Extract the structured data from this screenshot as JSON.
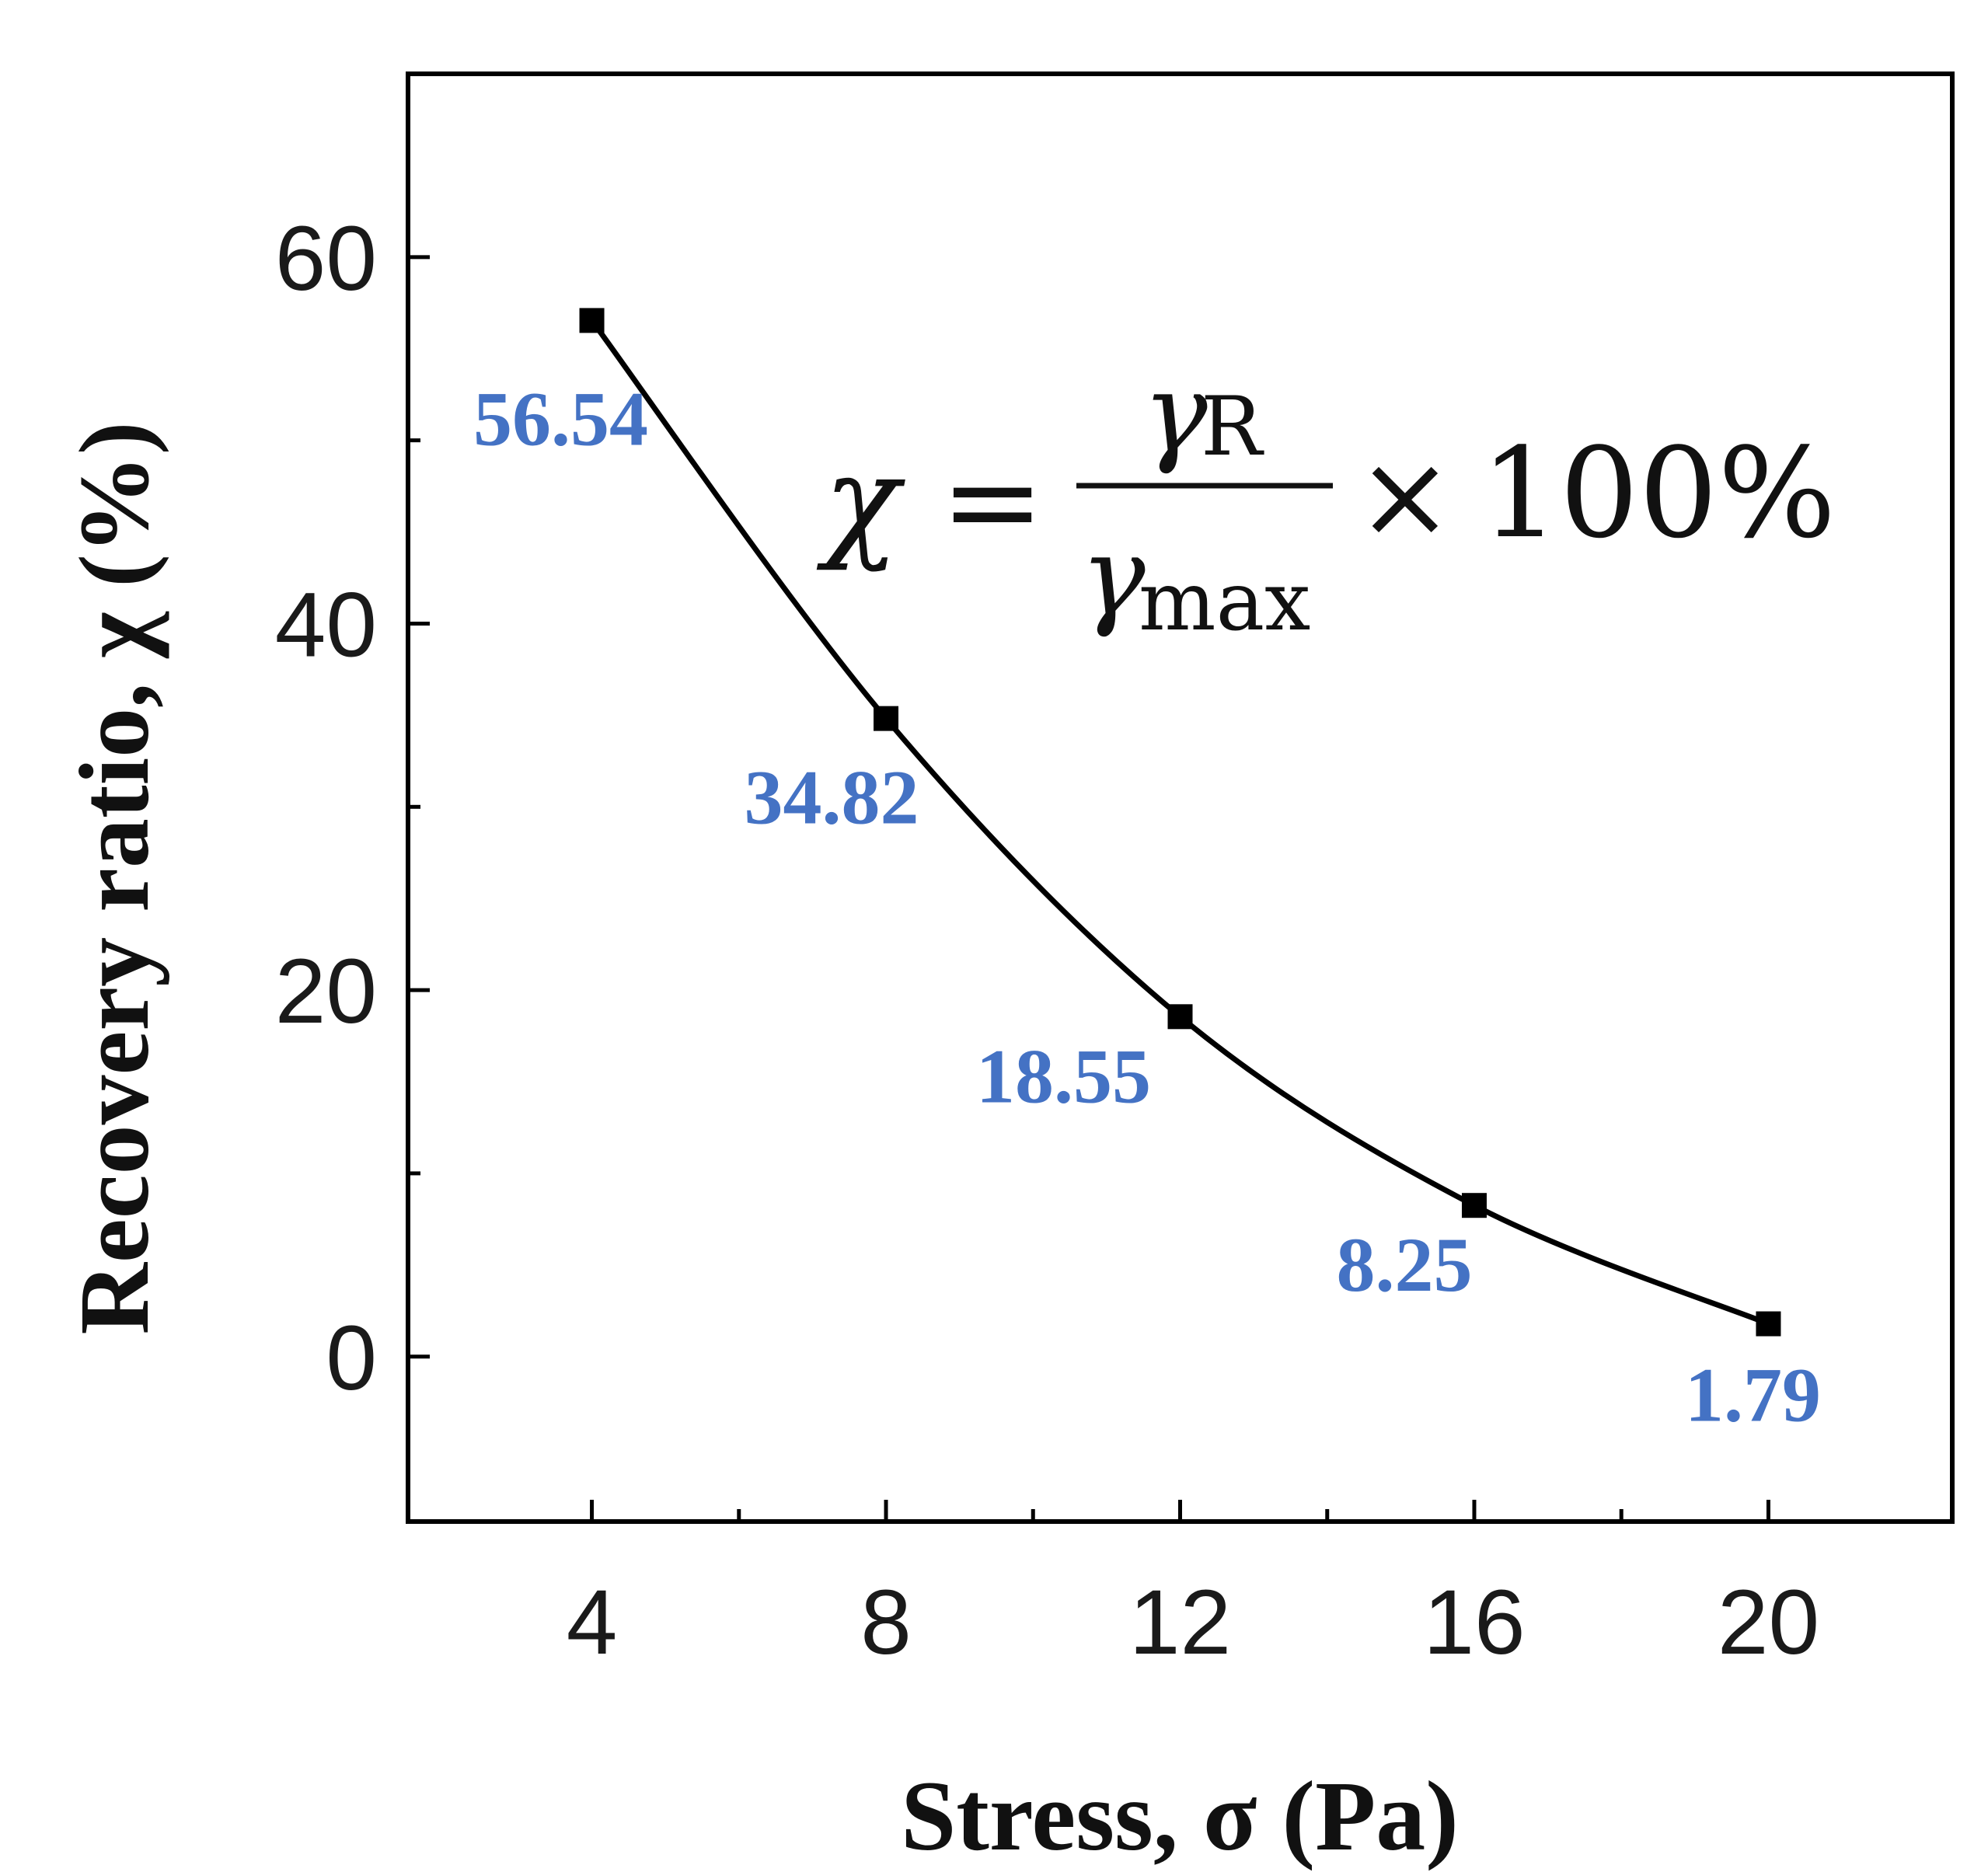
{
  "chart_data": {
    "type": "line",
    "title": "",
    "xlabel": "Stress, σ (Pa)",
    "ylabel": "Recovery ratio, χ (%)",
    "xlim": [
      1.5,
      22.5
    ],
    "ylim": [
      -9,
      70
    ],
    "xticks": [
      4,
      8,
      12,
      16,
      20
    ],
    "xminor": [
      6,
      10,
      14,
      18
    ],
    "yticks": [
      0,
      20,
      40,
      60
    ],
    "yminor": [
      10,
      30,
      50
    ],
    "grid": false,
    "series": [
      {
        "name": "Recovery ratio",
        "x": [
          4,
          8,
          12,
          16,
          20
        ],
        "y": [
          56.54,
          34.82,
          18.55,
          8.25,
          1.79
        ],
        "labels": [
          "56.54",
          "34.82",
          "18.55",
          "8.25",
          "1.79"
        ]
      }
    ],
    "label_color": "#4472c4",
    "line_color": "#000000",
    "annotation": {
      "lhs": "χ",
      "equals": "=",
      "numerator": "γ",
      "numerator_sub": "R",
      "denominator": "γ",
      "denominator_sub": "max",
      "times": "×",
      "factor": "100%"
    }
  }
}
